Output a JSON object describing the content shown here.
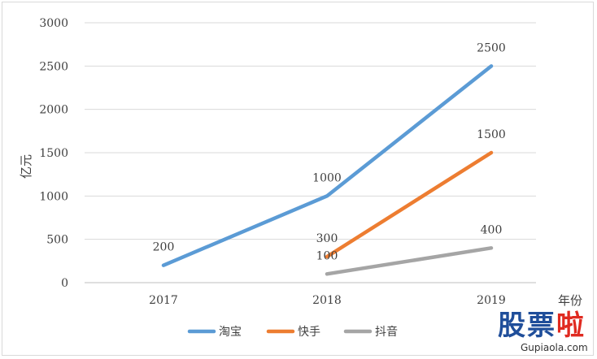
{
  "chart_data": {
    "type": "line",
    "title": "",
    "xlabel": "年份",
    "ylabel": "亿元",
    "categories": [
      "2017",
      "2018",
      "2019"
    ],
    "ylim": [
      0,
      3000
    ],
    "yticks": [
      "0",
      "500",
      "1000",
      "1500",
      "2000",
      "2500",
      "3000"
    ],
    "grid": true,
    "legend": "bottom",
    "series": [
      {
        "name": "淘宝",
        "color": "#5b9bd5",
        "values": [
          200,
          1000,
          2500
        ],
        "labels": [
          "200",
          "1000",
          "2500"
        ]
      },
      {
        "name": "快手",
        "color": "#ed7d31",
        "values": [
          null,
          300,
          1500
        ],
        "labels": [
          "",
          "300",
          "1500"
        ]
      },
      {
        "name": "抖音",
        "color": "#a5a5a5",
        "values": [
          null,
          100,
          400
        ],
        "labels": [
          "",
          "100",
          "400"
        ]
      }
    ]
  },
  "watermark": {
    "chars": [
      "股",
      "票",
      "啦"
    ],
    "colors": [
      "#1f4e9a",
      "#1f4e9a",
      "#e02a20"
    ],
    "url": "Gupiaola.com"
  }
}
